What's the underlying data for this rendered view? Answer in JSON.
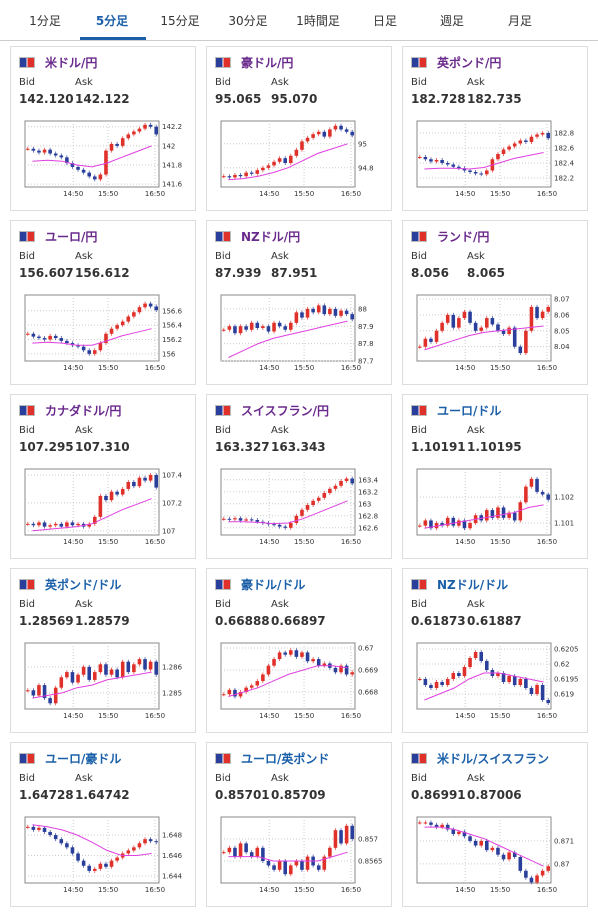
{
  "tabs": [
    "1分足",
    "5分足",
    "15分足",
    "30分足",
    "1時間足",
    "日足",
    "週足",
    "月足"
  ],
  "bid_label": "Bid",
  "ask_label": "Ask",
  "time_labels": [
    "14:50",
    "15:50",
    "16:50"
  ],
  "cards": [
    {
      "pair": "米ドル/円",
      "bid": "142.120",
      "ask": "142.122",
      "chart": {
        "type": "candlestick",
        "ylim": [
          141.57,
          142.26
        ],
        "yticks": [
          142.2,
          142,
          141.8,
          141.6
        ],
        "close": [
          141.97,
          141.95,
          141.93,
          141.96,
          141.92,
          141.9,
          141.88,
          141.82,
          141.78,
          141.75,
          141.72,
          141.68,
          141.65,
          141.7,
          141.95,
          142.02,
          142.0,
          142.08,
          142.12,
          142.15,
          142.18,
          142.22,
          142.2,
          142.12
        ],
        "ma": [
          141.84,
          141.85,
          141.84,
          141.8,
          141.78,
          141.82,
          141.88,
          141.94,
          142.0
        ]
      }
    },
    {
      "pair": "豪ドル/円",
      "bid": "95.065",
      "ask": "95.070",
      "chart": {
        "type": "candlestick",
        "ylim": [
          94.64,
          95.19
        ],
        "yticks": [
          95,
          94.8
        ],
        "close": [
          94.73,
          94.72,
          94.74,
          94.73,
          94.76,
          94.75,
          94.78,
          94.8,
          94.82,
          94.85,
          94.88,
          94.84,
          94.9,
          94.95,
          95.02,
          95.05,
          95.08,
          95.1,
          95.06,
          95.12,
          95.15,
          95.12,
          95.1,
          95.07
        ],
        "ma": [
          94.7,
          94.71,
          94.73,
          94.76,
          94.8,
          94.86,
          94.92,
          94.96,
          95.0
        ]
      }
    },
    {
      "pair": "英ポンド/円",
      "bid": "182.728",
      "ask": "182.735",
      "chart": {
        "type": "candlestick",
        "ylim": [
          182.08,
          182.96
        ],
        "yticks": [
          182.8,
          182.6,
          182.4,
          182.2
        ],
        "close": [
          182.48,
          182.45,
          182.42,
          182.44,
          182.4,
          182.38,
          182.35,
          182.33,
          182.3,
          182.28,
          182.26,
          182.25,
          182.3,
          182.45,
          182.52,
          182.58,
          182.62,
          182.66,
          182.7,
          182.68,
          182.75,
          182.78,
          182.8,
          182.73
        ],
        "ma": [
          182.32,
          182.33,
          182.33,
          182.32,
          182.34,
          182.4,
          182.46,
          182.5,
          182.54
        ]
      }
    },
    {
      "pair": "ユーロ/円",
      "bid": "156.607",
      "ask": "156.612",
      "chart": {
        "type": "candlestick",
        "ylim": [
          155.9,
          156.82
        ],
        "yticks": [
          156.6,
          156.4,
          156.2,
          156
        ],
        "close": [
          156.28,
          156.24,
          156.22,
          156.2,
          156.25,
          156.22,
          156.18,
          156.15,
          156.12,
          156.1,
          156.05,
          156.0,
          156.05,
          156.15,
          156.28,
          156.35,
          156.4,
          156.45,
          156.52,
          156.58,
          156.65,
          156.7,
          156.66,
          156.61
        ],
        "ma": [
          156.15,
          156.16,
          156.15,
          156.12,
          156.12,
          156.18,
          156.25,
          156.3,
          156.35
        ]
      }
    },
    {
      "pair": "NZドル/円",
      "bid": "87.939",
      "ask": "87.951",
      "chart": {
        "type": "candlestick",
        "ylim": [
          87.7,
          88.08
        ],
        "yticks": [
          88,
          87.9,
          87.8,
          87.7
        ],
        "close": [
          87.88,
          87.9,
          87.86,
          87.9,
          87.88,
          87.92,
          87.89,
          87.9,
          87.87,
          87.92,
          87.9,
          87.88,
          87.92,
          87.98,
          87.95,
          88.0,
          87.98,
          88.02,
          87.97,
          88.0,
          87.96,
          87.99,
          87.97,
          87.94
        ],
        "ma": [
          87.72,
          87.76,
          87.8,
          87.83,
          87.85,
          87.87,
          87.89,
          87.91,
          87.93
        ]
      }
    },
    {
      "pair": "ランド/円",
      "bid": "8.056",
      "ask": "8.065",
      "chart": {
        "type": "candlestick",
        "ylim": [
          8.031,
          8.0725
        ],
        "yticks": [
          8.07,
          8.06,
          8.05,
          8.04
        ],
        "close": [
          8.04,
          8.045,
          8.043,
          8.05,
          8.055,
          8.06,
          8.052,
          8.058,
          8.062,
          8.055,
          8.05,
          8.052,
          8.058,
          8.054,
          8.05,
          8.048,
          8.052,
          8.04,
          8.036,
          8.05,
          8.065,
          8.058,
          8.062,
          8.065
        ],
        "ma": [
          8.038,
          8.041,
          8.044,
          8.047,
          8.049,
          8.05,
          8.051,
          8.052,
          8.053
        ]
      }
    },
    {
      "pair": "カナダドル/円",
      "bid": "107.295",
      "ask": "107.310",
      "chart": {
        "type": "candlestick",
        "ylim": [
          106.97,
          107.443
        ],
        "yticks": [
          107.4,
          107.2,
          107
        ],
        "close": [
          107.05,
          107.04,
          107.06,
          107.03,
          107.04,
          107.05,
          107.03,
          107.06,
          107.04,
          107.05,
          107.03,
          107.05,
          107.1,
          107.25,
          107.22,
          107.28,
          107.26,
          107.3,
          107.35,
          107.32,
          107.38,
          107.36,
          107.4,
          107.31
        ],
        "ma": [
          107.0,
          107.01,
          107.02,
          107.03,
          107.05,
          107.1,
          107.15,
          107.19,
          107.23
        ]
      }
    },
    {
      "pair": "スイスフラン/円",
      "bid": "163.327",
      "ask": "163.343",
      "chart": {
        "type": "candlestick",
        "ylim": [
          162.48,
          163.58
        ],
        "yticks": [
          163.4,
          163.2,
          163,
          162.8,
          162.6
        ],
        "close": [
          162.75,
          162.74,
          162.76,
          162.72,
          162.74,
          162.73,
          162.7,
          162.68,
          162.66,
          162.65,
          162.62,
          162.6,
          162.68,
          162.8,
          162.9,
          162.98,
          163.05,
          163.1,
          163.18,
          163.25,
          163.3,
          163.38,
          163.42,
          163.34
        ],
        "ma": [
          162.7,
          162.7,
          162.69,
          162.67,
          162.68,
          162.75,
          162.85,
          162.95,
          163.05
        ]
      }
    },
    {
      "pair": "ユーロ/ドル",
      "bid": "1.10191",
      "ask": "1.10195",
      "chart": {
        "type": "candlestick",
        "ylim": [
          1.10054,
          1.10308
        ],
        "yticks": [
          1.102,
          1.101
        ],
        "close": [
          1.1009,
          1.1011,
          1.1008,
          1.101,
          1.1009,
          1.1012,
          1.1009,
          1.1011,
          1.1008,
          1.101,
          1.1013,
          1.1011,
          1.1015,
          1.1012,
          1.1016,
          1.1012,
          1.1014,
          1.1011,
          1.1018,
          1.1024,
          1.1027,
          1.1022,
          1.1021,
          1.1019
        ],
        "ma": [
          1.1008,
          1.1009,
          1.101,
          1.1011,
          1.1012,
          1.1013,
          1.1014,
          1.1016,
          1.1017
        ]
      }
    },
    {
      "pair": "英ポンド/ドル",
      "bid": "1.28569",
      "ask": "1.28579",
      "chart": {
        "type": "candlestick",
        "ylim": [
          1.28438,
          1.28692
        ],
        "yticks": [
          1.286,
          1.285
        ],
        "close": [
          1.2851,
          1.2849,
          1.2853,
          1.2848,
          1.2846,
          1.2852,
          1.2856,
          1.2858,
          1.2854,
          1.2857,
          1.286,
          1.2855,
          1.2858,
          1.2861,
          1.2857,
          1.2859,
          1.2856,
          1.2862,
          1.2858,
          1.2861,
          1.2863,
          1.2859,
          1.2862,
          1.2857
        ],
        "ma": [
          1.2848,
          1.2849,
          1.285,
          1.2852,
          1.2853,
          1.2855,
          1.2856,
          1.2857,
          1.2858
        ]
      }
    },
    {
      "pair": "豪ドル/ドル",
      "bid": "0.66888",
      "ask": "0.66897",
      "chart": {
        "type": "candlestick",
        "ylim": [
          0.66723,
          0.67023
        ],
        "yticks": [
          0.67,
          0.669,
          0.668
        ],
        "close": [
          0.6679,
          0.6681,
          0.6678,
          0.668,
          0.6682,
          0.6683,
          0.6685,
          0.6688,
          0.6692,
          0.6695,
          0.6698,
          0.6697,
          0.6699,
          0.6696,
          0.6698,
          0.6694,
          0.6695,
          0.6692,
          0.6693,
          0.6691,
          0.6689,
          0.6692,
          0.6688,
          0.6689
        ],
        "ma": [
          0.6678,
          0.668,
          0.6682,
          0.6685,
          0.6688,
          0.669,
          0.6692,
          0.6692,
          0.6691
        ]
      }
    },
    {
      "pair": "NZドル/ドル",
      "bid": "0.61873",
      "ask": "0.61887",
      "chart": {
        "type": "candlestick",
        "ylim": [
          0.6185,
          0.6207
        ],
        "yticks": [
          0.6205,
          0.62,
          0.6195,
          0.619
        ],
        "close": [
          0.6195,
          0.6193,
          0.6192,
          0.6194,
          0.6193,
          0.6195,
          0.6197,
          0.6196,
          0.6199,
          0.6202,
          0.6204,
          0.6201,
          0.6198,
          0.6196,
          0.6197,
          0.6194,
          0.6196,
          0.6193,
          0.6195,
          0.6192,
          0.619,
          0.6193,
          0.6188,
          0.6187
        ],
        "ma": [
          0.6188,
          0.619,
          0.6192,
          0.6195,
          0.6197,
          0.6197,
          0.6196,
          0.6195,
          0.6194
        ]
      }
    },
    {
      "pair": "ユーロ/豪ドル",
      "bid": "1.64728",
      "ask": "1.64742",
      "chart": {
        "type": "candlestick",
        "ylim": [
          1.64332,
          1.64976
        ],
        "yticks": [
          1.648,
          1.646,
          1.644
        ],
        "close": [
          1.6488,
          1.6485,
          1.6487,
          1.6483,
          1.648,
          1.6476,
          1.6472,
          1.6468,
          1.6462,
          1.6455,
          1.645,
          1.6445,
          1.6447,
          1.6452,
          1.6449,
          1.6455,
          1.6458,
          1.6462,
          1.6465,
          1.6468,
          1.6472,
          1.6476,
          1.6474,
          1.6473
        ],
        "ma": [
          1.649,
          1.6488,
          1.6485,
          1.648,
          1.6473,
          1.6465,
          1.646,
          1.646,
          1.6462
        ]
      }
    },
    {
      "pair": "ユーロ/英ポンド",
      "bid": "0.85701",
      "ask": "0.85709",
      "chart": {
        "type": "candlestick",
        "ylim": [
          0.856,
          0.8575
        ],
        "yticks": [
          0.857,
          0.8565
        ],
        "close": [
          0.8567,
          0.8568,
          0.8566,
          0.8569,
          0.8567,
          0.8566,
          0.8568,
          0.8565,
          0.8564,
          0.8563,
          0.8565,
          0.8562,
          0.8564,
          0.8565,
          0.8563,
          0.8566,
          0.8564,
          0.8563,
          0.8566,
          0.8568,
          0.8572,
          0.8569,
          0.8573,
          0.857
        ],
        "ma": [
          0.8566,
          0.8566,
          0.8566,
          0.8565,
          0.8565,
          0.8565,
          0.8565,
          0.8566,
          0.8567
        ]
      }
    },
    {
      "pair": "米ドル/スイスフラン",
      "bid": "0.86991",
      "ask": "0.87006",
      "chart": {
        "type": "candlestick",
        "ylim": [
          0.86917,
          0.87204
        ],
        "yticks": [
          0.871,
          0.87
        ],
        "close": [
          0.8718,
          0.8718,
          0.8717,
          0.8716,
          0.8717,
          0.8715,
          0.8713,
          0.8714,
          0.8712,
          0.871,
          0.8708,
          0.871,
          0.8706,
          0.8707,
          0.8704,
          0.8702,
          0.8705,
          0.8703,
          0.8697,
          0.8694,
          0.8692,
          0.8695,
          0.8697,
          0.8699
        ],
        "ma": [
          0.8716,
          0.8716,
          0.8715,
          0.8713,
          0.8711,
          0.8708,
          0.8705,
          0.8702,
          0.8699
        ]
      }
    }
  ]
}
